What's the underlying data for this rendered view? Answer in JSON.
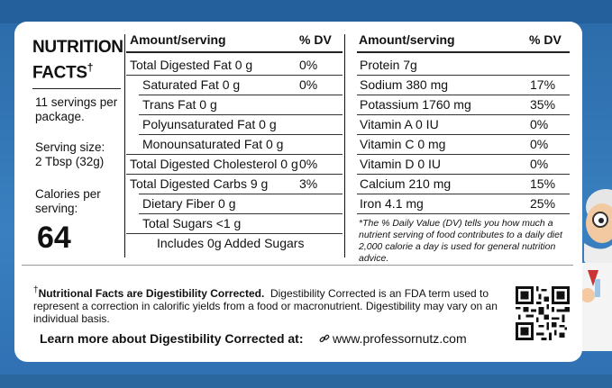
{
  "nutrition_facts": {
    "title_line1": "NUTRITION",
    "title_line2": "FACTS",
    "title_mark": "†",
    "servings": "11 servings per package.",
    "serving_size_label": "Serving size:",
    "serving_size_value": "2 Tbsp (32g)",
    "calories_label": "Calories per serving:",
    "calories_value": "64"
  },
  "left_table": {
    "header_amount": "Amount/serving",
    "header_dv": "% DV",
    "rows": [
      {
        "label": "Total Digested Fat 0 g",
        "dv": "0%"
      },
      {
        "label": "Saturated Fat 0 g",
        "dv": "0%"
      },
      {
        "label": "Trans Fat 0 g",
        "dv": ""
      },
      {
        "label": "Polyunsaturated Fat 0 g",
        "dv": ""
      },
      {
        "label": "Monounsaturated Fat 0 g",
        "dv": ""
      },
      {
        "label": "Total Digested Cholesterol 0 g",
        "dv": "0%"
      },
      {
        "label": "Total Digested Carbs 9 g",
        "dv": "3%"
      },
      {
        "label": "Dietary Fiber 0 g",
        "dv": ""
      },
      {
        "label": "Total Sugars <1 g",
        "dv": ""
      },
      {
        "label": "Includes 0g Added Sugars",
        "dv": ""
      }
    ]
  },
  "right_table": {
    "header_amount": "Amount/serving",
    "header_dv": "% DV",
    "rows": [
      {
        "label": "Protein 7g",
        "dv": ""
      },
      {
        "label": "Sodium 380 mg",
        "dv": "17%"
      },
      {
        "label": "Potassium 1760 mg",
        "dv": "35%"
      },
      {
        "label": "Vitamin A 0 IU",
        "dv": "0%"
      },
      {
        "label": "Vitamin C 0 mg",
        "dv": "0%"
      },
      {
        "label": "Vitamin D 0 IU",
        "dv": "0%"
      },
      {
        "label": "Calcium 210 mg",
        "dv": "15%"
      },
      {
        "label": "Iron  4.1 mg",
        "dv": "25%"
      }
    ],
    "note": "*The % Daily Value (DV) tells you how much a nutrient serving of food contributes to a daily diet 2,000 calorie a day is used for general nutrition advice."
  },
  "footer": {
    "footnote_mark": "†",
    "footnote_bold": "Nutritional Facts are Digestibility Corrected.",
    "footnote_text": "Digestibility Corrected is an FDA term used to represent a correction in calorific yields from a food or macronutrient. Digestibility may vary on an individual basis.",
    "learn_more": "Learn more about Digestibility Corrected at:",
    "url": "www.professornutz.com",
    "link_icon": "link-icon",
    "qr_icon": "qr-code"
  },
  "colors": {
    "background": "#2f6fb0",
    "panel": "#ffffff",
    "text": "#111111"
  }
}
